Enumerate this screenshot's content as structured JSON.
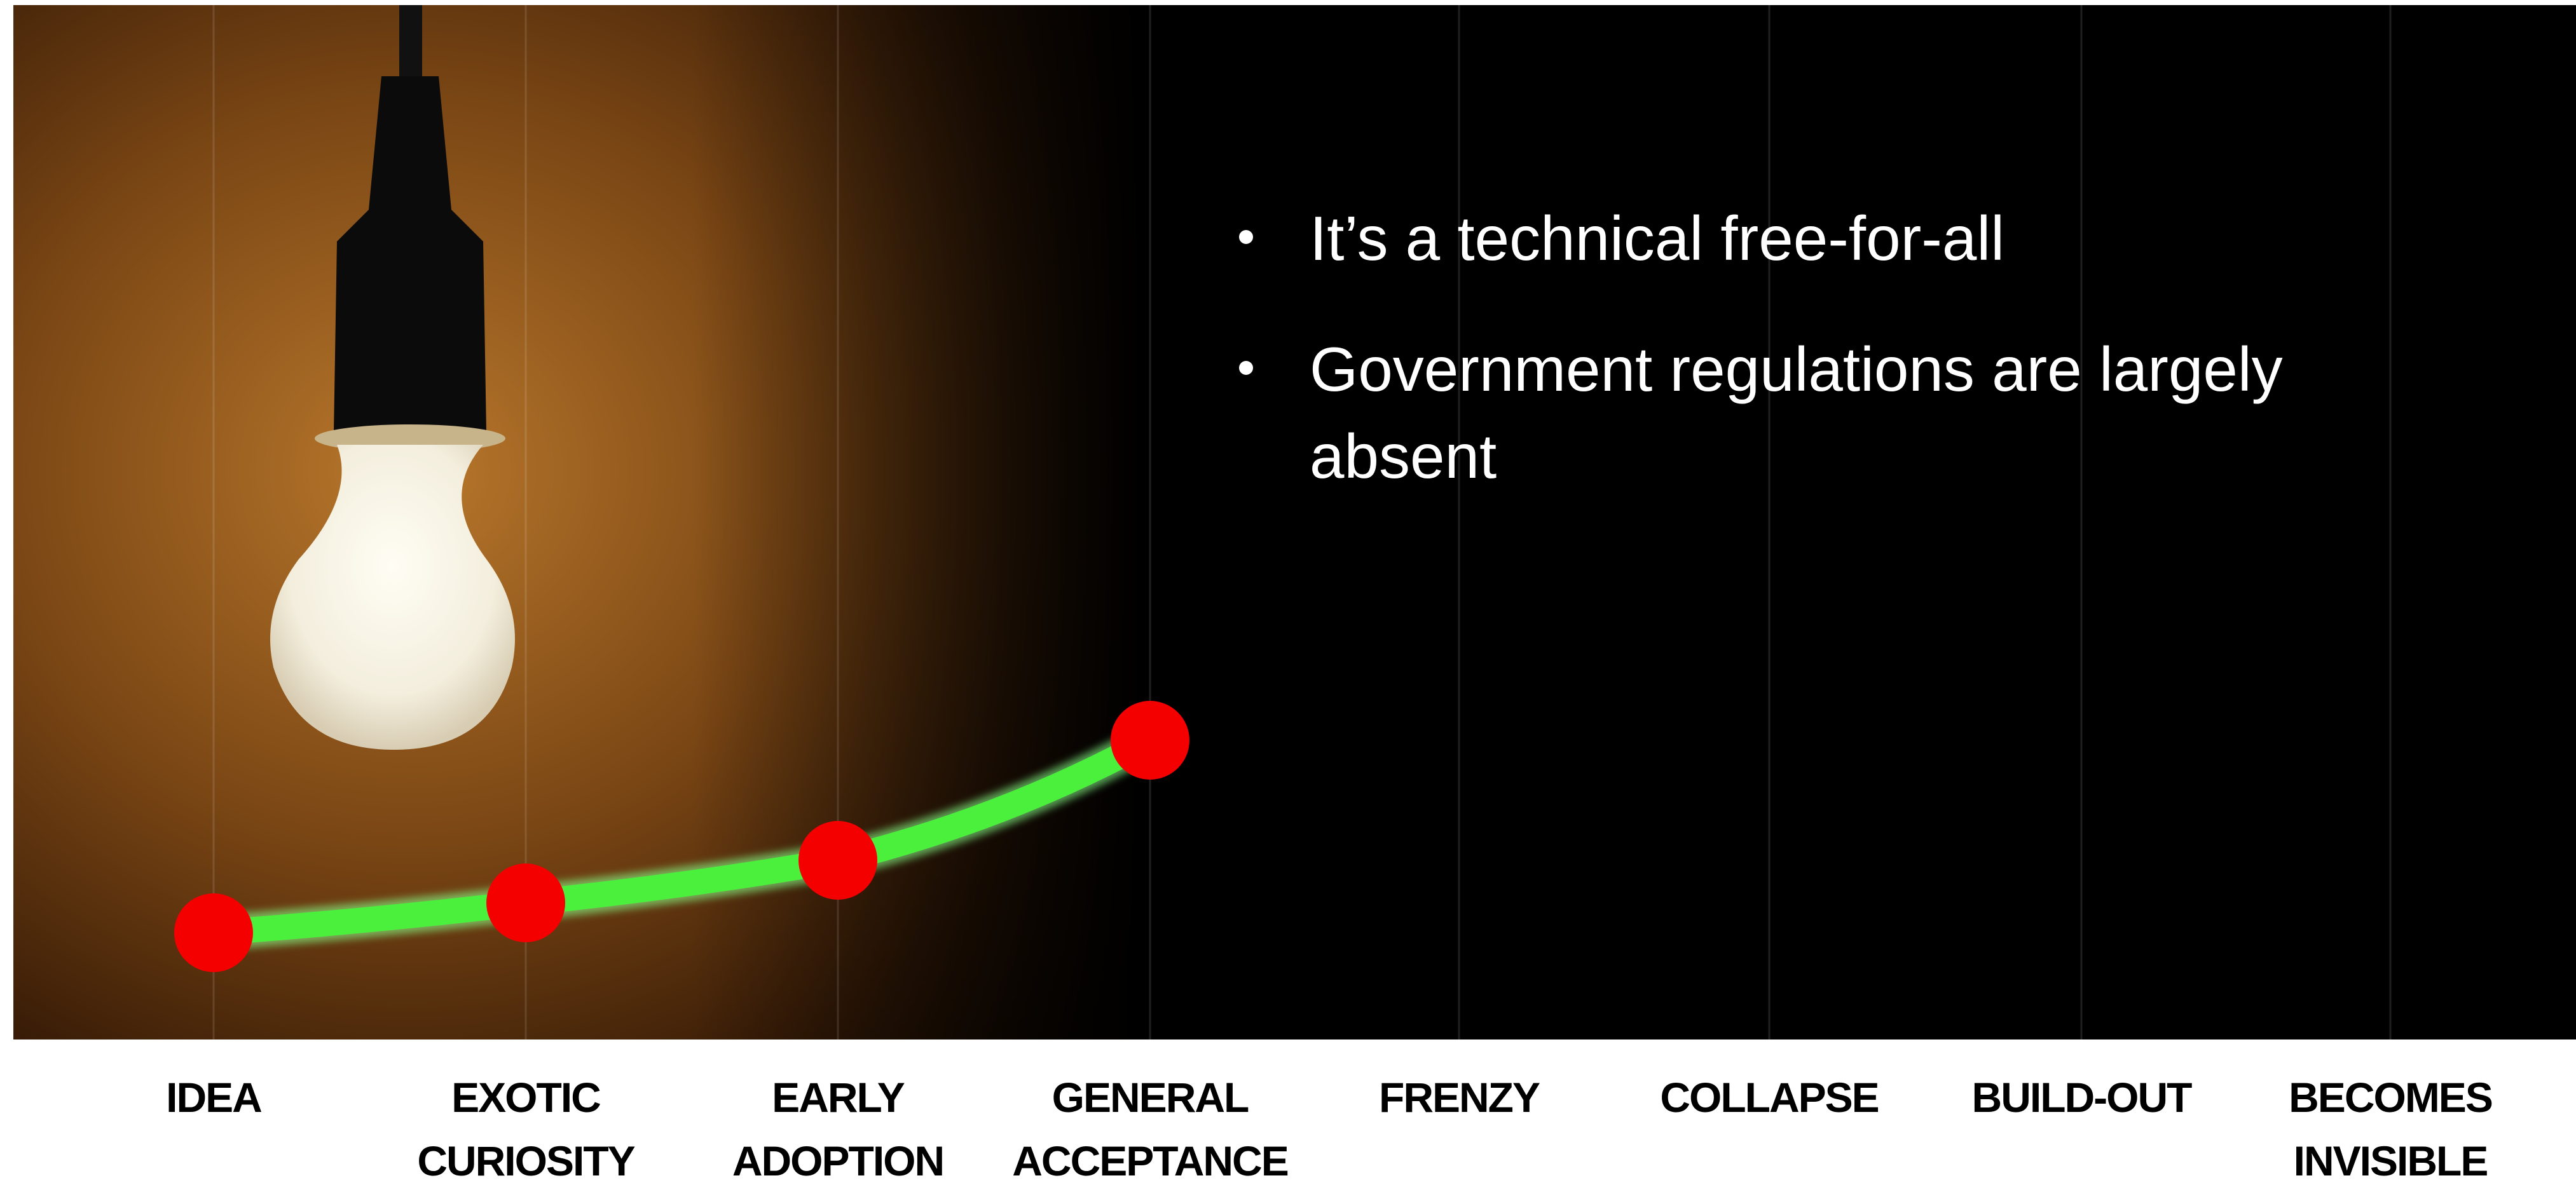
{
  "bullets": [
    "It’s a technical free-for-all",
    [
      "Government regulations are largely",
      "absent"
    ]
  ],
  "stages": [
    [
      "IDEA"
    ],
    [
      "EXOTIC",
      "CURIOSITY"
    ],
    [
      "EARLY",
      "ADOPTION"
    ],
    [
      "GENERAL",
      "ACCEPTANCE"
    ],
    [
      "FRENZY"
    ],
    [
      "COLLAPSE"
    ],
    [
      "BUILD-OUT"
    ],
    [
      "BECOMES",
      "INVISIBLE"
    ]
  ]
}
